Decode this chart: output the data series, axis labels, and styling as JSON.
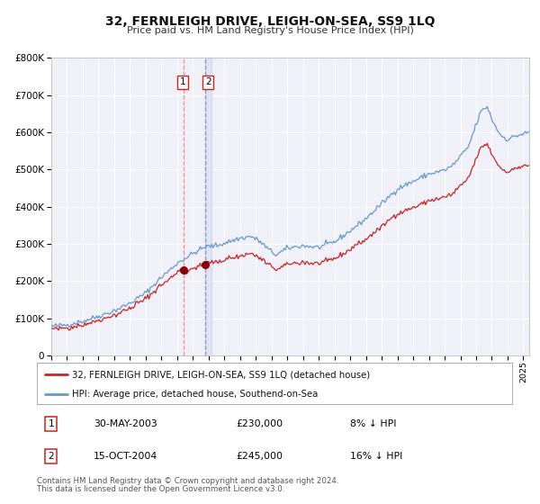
{
  "title": "32, FERNLEIGH DRIVE, LEIGH-ON-SEA, SS9 1LQ",
  "subtitle": "Price paid vs. HM Land Registry's House Price Index (HPI)",
  "legend_line1": "32, FERNLEIGH DRIVE, LEIGH-ON-SEA, SS9 1LQ (detached house)",
  "legend_line2": "HPI: Average price, detached house, Southend-on-Sea",
  "transaction1_date": "30-MAY-2003",
  "transaction1_price": 230000,
  "transaction1_pct": "8% ↓ HPI",
  "transaction2_date": "15-OCT-2004",
  "transaction2_price": 245000,
  "transaction2_pct": "16% ↓ HPI",
  "hpi_color": "#6699cc",
  "price_color": "#cc2222",
  "dot_color": "#880000",
  "vline1_color": "#ff8888",
  "vline2_color": "#99aacc",
  "footer": "Contains HM Land Registry data © Crown copyright and database right 2024.\nThis data is licensed under the Open Government Licence v3.0.",
  "ylim_max": 800000,
  "bg_color": "#f0f0f8"
}
